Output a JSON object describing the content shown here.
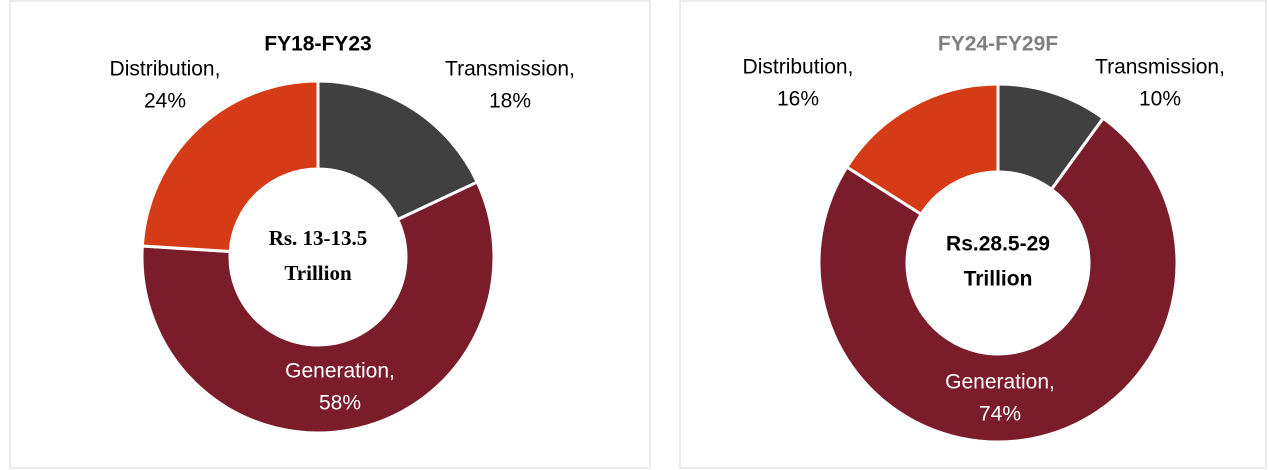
{
  "chart_data": [
    {
      "type": "pie",
      "title": "FY18-FY23",
      "title_color": "#000000",
      "categories": [
        "Transmission,",
        "Generation,",
        "Distribution,"
      ],
      "values": [
        18,
        58,
        24
      ],
      "value_labels": [
        "18%",
        "58%",
        "24%"
      ],
      "colors": [
        "#404040",
        "#7b1c2a",
        "#d43b16"
      ],
      "center_label": [
        "Rs. 13-13.5",
        "Trillion"
      ]
    },
    {
      "type": "pie",
      "title": "FY24-FY29F",
      "title_color": "#7f7f7f",
      "categories": [
        "Transmission,",
        "Generation,",
        "Distribution,"
      ],
      "values": [
        10,
        74,
        16
      ],
      "value_labels": [
        "10%",
        "74%",
        "16%"
      ],
      "colors": [
        "#404040",
        "#7b1c2a",
        "#d43b16"
      ],
      "center_label": [
        "Rs.28.5-29",
        "Trillion"
      ]
    }
  ]
}
